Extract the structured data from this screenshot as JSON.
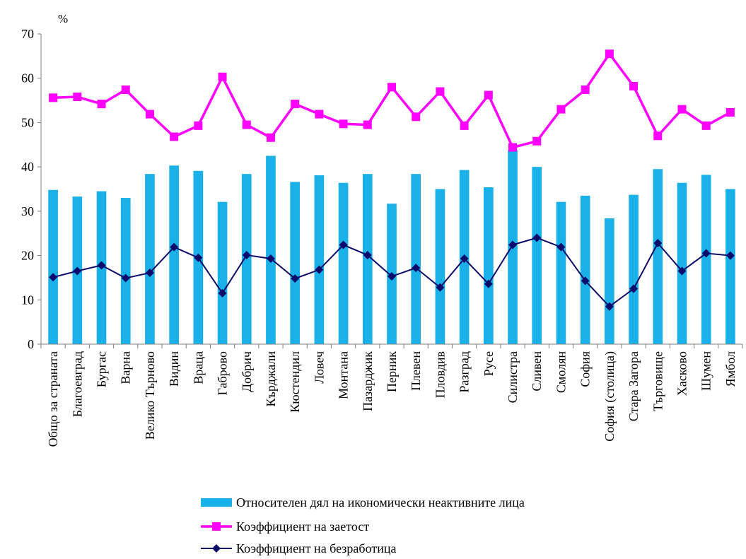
{
  "chart_data": {
    "type": "bar",
    "y_unit": "%",
    "ylim": [
      0,
      70
    ],
    "yticks": [
      0,
      10,
      20,
      30,
      40,
      50,
      60,
      70
    ],
    "grid": false,
    "legend_position": "bottom",
    "categories": [
      "Общо за страната",
      "Благоевград",
      "Бургас",
      "Варна",
      "Велико Търново",
      "Видин",
      "Враца",
      "Габрово",
      "Добрич",
      "Кърджали",
      "Кюстендил",
      "Ловеч",
      "Монтана",
      "Пазарджик",
      "Перник",
      "Плевен",
      "Пловдив",
      "Разград",
      "Русе",
      "Силистра",
      "Сливен",
      "Смолян",
      "София",
      "София (столица)",
      "Стара Загора",
      "Търговище",
      "Хасково",
      "Шумен",
      "Ямбол"
    ],
    "series": [
      {
        "name": "Относителен дял на икономически неактивните лица",
        "kind": "bar",
        "color": "#1AB0E8",
        "values": [
          34.8,
          33.3,
          34.5,
          33.0,
          38.4,
          40.3,
          39.1,
          32.1,
          38.4,
          42.5,
          36.6,
          38.1,
          36.4,
          38.4,
          31.7,
          38.4,
          35.0,
          39.3,
          35.4,
          43.8,
          40.0,
          32.1,
          33.5,
          28.4,
          33.7,
          39.5,
          36.4,
          38.2,
          35.0
        ]
      },
      {
        "name": "Коэффициент на заетост",
        "kind": "line",
        "marker": "square",
        "color": "#FF00FF",
        "values": [
          55.6,
          55.8,
          54.2,
          57.4,
          51.9,
          46.8,
          49.3,
          60.3,
          49.5,
          46.6,
          54.2,
          51.9,
          49.7,
          49.5,
          58.0,
          51.3,
          57.0,
          49.3,
          56.2,
          44.4,
          45.8,
          53.0,
          57.4,
          65.5,
          58.2,
          47.0,
          53.0,
          49.3,
          52.3
        ]
      },
      {
        "name": "Коэффициент на безработица",
        "kind": "line",
        "marker": "diamond",
        "color": "#0B0B6B",
        "values": [
          15.1,
          16.5,
          17.8,
          14.9,
          16.1,
          21.9,
          19.5,
          11.5,
          20.1,
          19.3,
          14.8,
          16.8,
          22.4,
          20.1,
          15.3,
          17.2,
          12.8,
          19.3,
          13.6,
          22.4,
          24.0,
          21.9,
          14.3,
          8.5,
          12.5,
          22.8,
          16.5,
          20.5,
          20.0
        ]
      }
    ]
  }
}
